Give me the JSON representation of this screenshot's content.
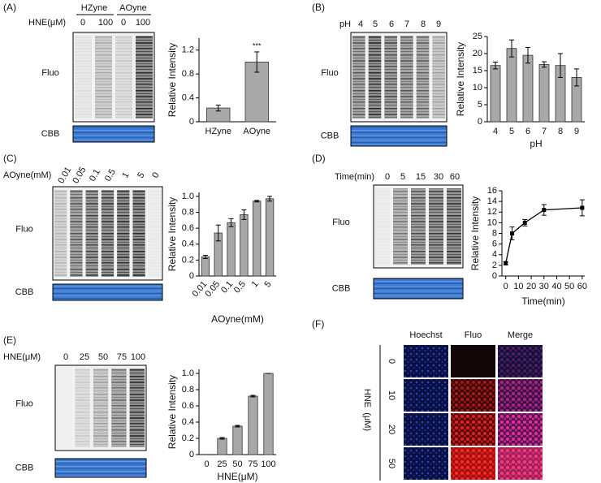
{
  "panel_labels": [
    "(A)",
    "(B)",
    "(C)",
    "(D)",
    "(E)",
    "(F)"
  ],
  "gels": [
    {
      "treatment": "HNE(μM)",
      "groups": [
        "HZyne",
        "AOyne"
      ],
      "lanes": [
        "0",
        "100",
        "0",
        "100"
      ],
      "rows": [
        "Fluo",
        "CBB"
      ]
    },
    {
      "treatment": "pH",
      "lanes": [
        "4",
        "5",
        "6",
        "7",
        "8",
        "9"
      ],
      "rows": [
        "Fluo",
        "CBB"
      ]
    },
    {
      "treatment": "AOyne(mM)",
      "lanes": [
        "0.01",
        "0.05",
        "0.1",
        "0.5",
        "1",
        "5",
        "0"
      ],
      "rows": [
        "Fluo",
        "CBB"
      ]
    },
    {
      "treatment": "Time(min)",
      "lanes": [
        "0",
        "5",
        "15",
        "30",
        "60"
      ],
      "rows": [
        "Fluo",
        "CBB"
      ]
    },
    {
      "treatment": "HNE(μM)",
      "lanes": [
        "0",
        "25",
        "50",
        "75",
        "100"
      ],
      "rows": [
        "Fluo",
        "CBB"
      ]
    }
  ],
  "microscopy": {
    "columns": [
      "Hoechst",
      "Fluo",
      "Merge"
    ],
    "axis_label": "HNE  (μM)",
    "rows": [
      "0",
      "10",
      "20",
      "50"
    ]
  },
  "chart_data": [
    {
      "type": "bar",
      "ylabel": "Relative Intensity",
      "categories": [
        "HZyne",
        "AOyne"
      ],
      "values": [
        0.23,
        1.0
      ],
      "errors": [
        0.05,
        0.17
      ],
      "annotation": "***",
      "color": "#a8a8a8",
      "ylim": [
        0,
        1.4
      ],
      "yticks": [
        0,
        0.4,
        0.8,
        1.2
      ]
    },
    {
      "type": "bar",
      "ylabel": "Relative Intensity",
      "xlabel": "pH",
      "categories": [
        "4",
        "5",
        "6",
        "7",
        "8",
        "9"
      ],
      "values": [
        16.5,
        21.5,
        19.5,
        16.8,
        16.5,
        13
      ],
      "errors": [
        1,
        2.5,
        2.3,
        0.8,
        3.5,
        2.5
      ],
      "color": "#a8a8a8",
      "ylim": [
        0,
        25
      ],
      "yticks": [
        0,
        5,
        10,
        15,
        20,
        25
      ]
    },
    {
      "type": "bar",
      "ylabel": "Relative Intensity",
      "xlabel": "AOyne(mM)",
      "categories": [
        "0.01",
        "0.05",
        "0.1",
        "0.5",
        "1",
        "5"
      ],
      "values": [
        0.24,
        0.54,
        0.67,
        0.77,
        0.94,
        0.97
      ],
      "errors": [
        0.02,
        0.1,
        0.05,
        0.06,
        0.01,
        0.03
      ],
      "color": "#a8a8a8",
      "ylim": [
        0,
        1.05
      ],
      "yticks": [
        0,
        0.2,
        0.4,
        0.6,
        0.8,
        {
          "value": 1,
          "label": "1.0"
        }
      ]
    },
    {
      "type": "line",
      "ylabel": "Relative Intensity",
      "xlabel": "Time(min)",
      "x": [
        0,
        5,
        15,
        30,
        60
      ],
      "y": [
        2.4,
        8,
        10,
        12.4,
        12.8
      ],
      "errors": [
        0.3,
        1.2,
        0.6,
        1,
        1.5
      ],
      "color": "#000000",
      "xlim": [
        -3,
        62
      ],
      "xticks": [
        0,
        10,
        20,
        30,
        40,
        50,
        60
      ],
      "ylim": [
        0,
        16
      ],
      "yticks": [
        0,
        2,
        4,
        6,
        8,
        10,
        12,
        14,
        16
      ]
    },
    {
      "type": "bar",
      "ylabel": "Relative Intensity",
      "xlabel": "HNE(μM)",
      "categories": [
        "0",
        "25",
        "50",
        "75",
        "100"
      ],
      "values": [
        0,
        0.2,
        0.35,
        0.72,
        1.0
      ],
      "errors": [
        0,
        0.01,
        0.01,
        0.01,
        0
      ],
      "color": "#a8a8a8",
      "ylim": [
        0,
        1.05
      ],
      "yticks": [
        0,
        0.2,
        0.4,
        0.6,
        0.8,
        {
          "value": 1,
          "label": "1.0"
        }
      ]
    }
  ]
}
